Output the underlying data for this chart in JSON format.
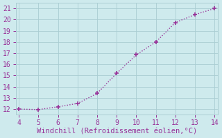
{
  "x": [
    4,
    5,
    6,
    7,
    8,
    9,
    10,
    11,
    12,
    13,
    14
  ],
  "y": [
    12.0,
    11.95,
    12.2,
    12.5,
    13.4,
    15.2,
    16.85,
    18.0,
    19.75,
    20.45,
    21.0
  ],
  "line_color": "#993399",
  "marker": "+",
  "marker_size": 4,
  "marker_lw": 1.2,
  "linewidth": 1.0,
  "linestyle": "dotted",
  "xlabel": "Windchill (Refroidissement éolien,°C)",
  "xlim": [
    3.85,
    14.15
  ],
  "ylim": [
    11.5,
    21.5
  ],
  "xticks": [
    4,
    5,
    6,
    7,
    8,
    9,
    10,
    11,
    12,
    13,
    14
  ],
  "yticks": [
    12,
    13,
    14,
    15,
    16,
    17,
    18,
    19,
    20,
    21
  ],
  "bg_color": "#ceeaed",
  "grid_color": "#aacdd2",
  "tick_color": "#993399",
  "label_color": "#993399",
  "font_size": 7,
  "xlabel_fontsize": 7.5
}
